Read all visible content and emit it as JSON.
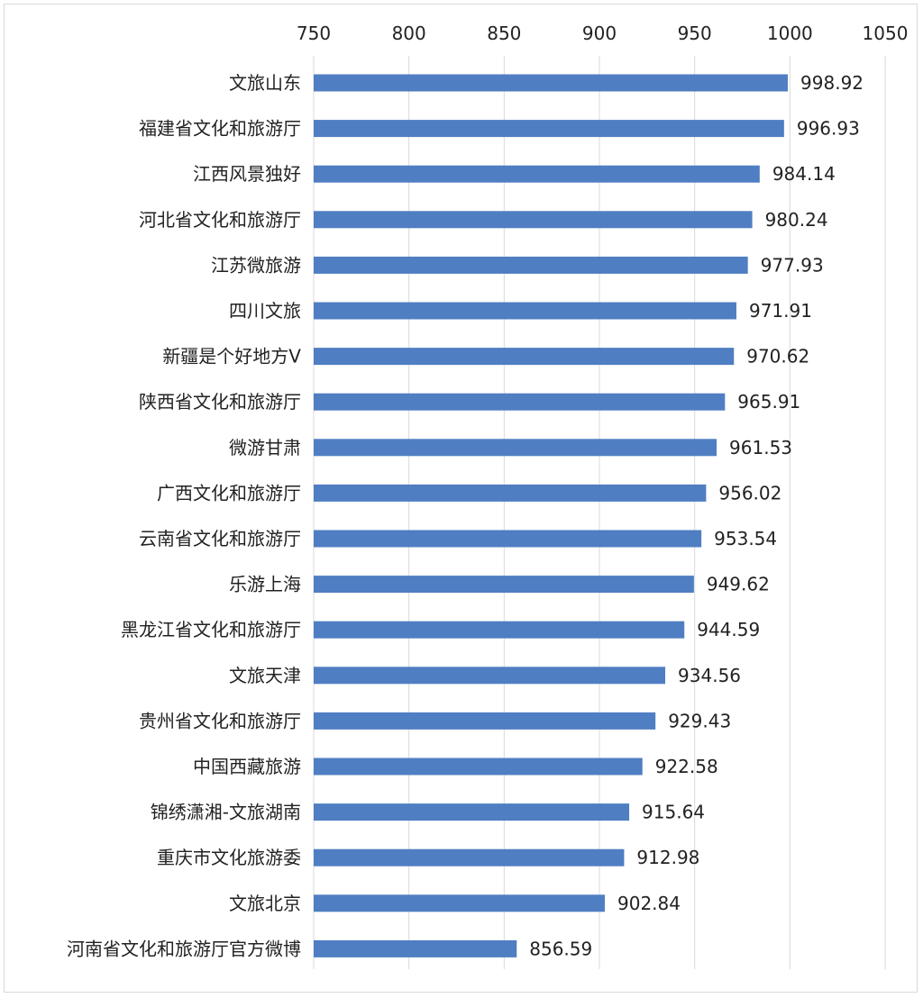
{
  "chart_data": {
    "type": "bar",
    "orientation": "horizontal",
    "title": "",
    "xlabel": "",
    "ylabel": "",
    "xlim": [
      750,
      1050
    ],
    "ticks": [
      750,
      800,
      850,
      900,
      950,
      1000,
      1050
    ],
    "tick_labels": [
      "750",
      "800",
      "850",
      "900",
      "950",
      "1000",
      "1050"
    ],
    "grid": true,
    "legend": "none",
    "bar_color": "#4f7ec2",
    "categories": [
      "文旅山东",
      "福建省文化和旅游厅",
      "江西风景独好",
      "河北省文化和旅游厅",
      "江苏微旅游",
      "四川文旅",
      "新疆是个好地方V",
      "陕西省文化和旅游厅",
      "微游甘肃",
      "广西文化和旅游厅",
      "云南省文化和旅游厅",
      "乐游上海",
      "黑龙江省文化和旅游厅",
      "文旅天津",
      "贵州省文化和旅游厅",
      "中国西藏旅游",
      "锦绣潇湘-文旅湖南",
      "重庆市文化旅游委",
      "文旅北京",
      "河南省文化和旅游厅官方微博"
    ],
    "values": [
      998.92,
      996.93,
      984.14,
      980.24,
      977.93,
      971.91,
      970.62,
      965.91,
      961.53,
      956.02,
      953.54,
      949.62,
      944.59,
      934.56,
      929.43,
      922.58,
      915.64,
      912.98,
      902.84,
      856.59
    ],
    "value_labels": [
      "998.92",
      "996.93",
      "984.14",
      "980.24",
      "977.93",
      "971.91",
      "970.62",
      "965.91",
      "961.53",
      "956.02",
      "953.54",
      "949.62",
      "944.59",
      "934.56",
      "929.43",
      "922.58",
      "915.64",
      "912.98",
      "902.84",
      "856.59"
    ]
  }
}
